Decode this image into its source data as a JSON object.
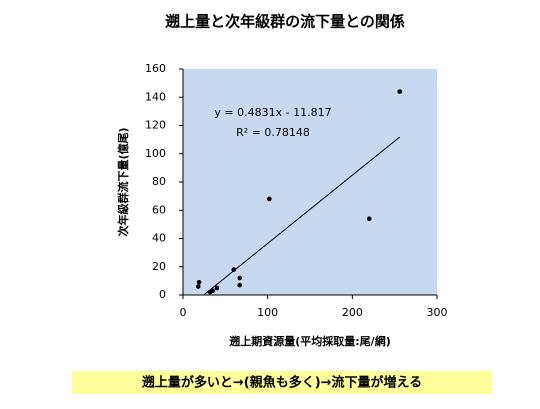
{
  "chart_data": {
    "type": "scatter",
    "title": "遡上量と次年級群の流下量との関係",
    "x_label": "遡上期資源量(平均採取量:尾/網)",
    "y_label": "次年級群流下量(億尾)",
    "x": [
      18,
      19,
      32,
      35,
      40,
      60,
      67,
      67,
      102,
      220,
      256
    ],
    "values": [
      6,
      9,
      2,
      3,
      5,
      18,
      12,
      7,
      68,
      54,
      144
    ],
    "color": "#000000",
    "plot_background": "#c6d9f1",
    "xlim": [
      0,
      300
    ],
    "xticks": [
      0,
      100,
      200,
      300
    ],
    "ylim": [
      0,
      160
    ],
    "yticks": [
      0,
      20,
      40,
      60,
      80,
      100,
      120,
      140,
      160
    ],
    "trendline": {
      "slope": 0.4831,
      "intercept": -11.817,
      "equation": "y = 0.4831x - 11.817",
      "r_squared": "R² = 0.78148"
    },
    "caption": "遡上量が多いと→(親魚も多く)→流下量が増える"
  }
}
